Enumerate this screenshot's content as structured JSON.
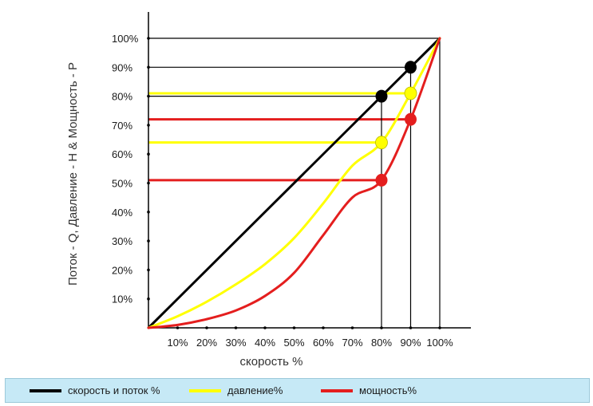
{
  "chart_data": {
    "type": "line",
    "title": "",
    "xlabel": "скорость %",
    "ylabel": "Поток - Q,  Давление - H & Мощность - P",
    "xlim": [
      0,
      100
    ],
    "ylim": [
      0,
      100
    ],
    "x_ticks": [
      "10%",
      "20%",
      "30%",
      "40%",
      "50%",
      "60%",
      "70%",
      "80%",
      "90%",
      "100%"
    ],
    "y_ticks": [
      "10%",
      "20%",
      "30%",
      "40%",
      "50%",
      "60%",
      "70%",
      "80%",
      "90%",
      "100%"
    ],
    "grid": false,
    "legend_position": "bottom",
    "series": [
      {
        "key": "flow",
        "name": "скорость и поток %",
        "color": "#000000",
        "x": [
          0,
          100
        ],
        "y": [
          0,
          100
        ]
      },
      {
        "key": "pressure",
        "name": "давление%",
        "color": "#ffff00",
        "x": [
          0,
          10,
          20,
          30,
          40,
          50,
          60,
          70,
          80,
          90,
          100
        ],
        "y": [
          0,
          4,
          9,
          15,
          22,
          31,
          43,
          56,
          64,
          81,
          100
        ]
      },
      {
        "key": "power",
        "name": "мощность%",
        "color": "#e41e1e",
        "x": [
          0,
          10,
          20,
          30,
          40,
          50,
          60,
          70,
          80,
          90,
          100
        ],
        "y": [
          0,
          1,
          3,
          6,
          11,
          19,
          32,
          45,
          51,
          72,
          100
        ]
      }
    ],
    "highlight_points": [
      {
        "series": "flow",
        "x": 80,
        "y": 80
      },
      {
        "series": "flow",
        "x": 90,
        "y": 90
      },
      {
        "series": "pressure",
        "x": 80,
        "y": 64
      },
      {
        "series": "pressure",
        "x": 90,
        "y": 81
      },
      {
        "series": "power",
        "x": 80,
        "y": 51
      },
      {
        "series": "power",
        "x": 90,
        "y": 72
      }
    ],
    "reference_lines": [
      {
        "y": 100,
        "x_end": 100,
        "color": "#000000"
      },
      {
        "y": 90,
        "x_end": 90,
        "color": "#000000"
      },
      {
        "y": 80,
        "x_end": 80,
        "color": "#000000"
      },
      {
        "y": 81,
        "x_end": 90,
        "color": "#ffff00"
      },
      {
        "y": 72,
        "x_end": 90,
        "color": "#e41e1e"
      },
      {
        "y": 64,
        "x_end": 80,
        "color": "#ffff00"
      },
      {
        "y": 51,
        "x_end": 80,
        "color": "#e41e1e"
      }
    ],
    "vertical_drops": [
      80,
      90,
      100
    ]
  }
}
